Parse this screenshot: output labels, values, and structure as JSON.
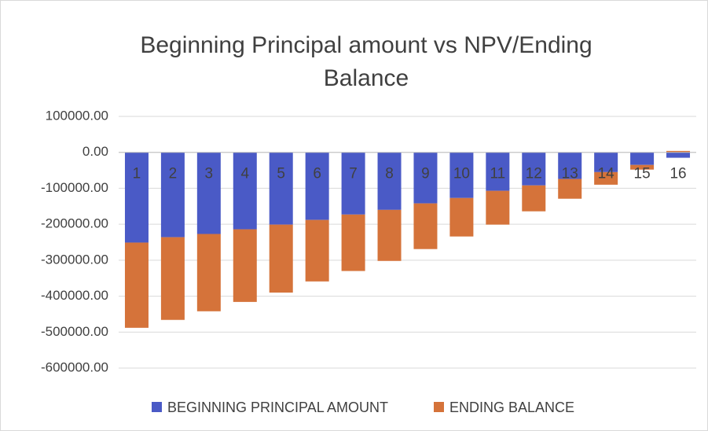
{
  "chart_data": {
    "type": "stacked_bar",
    "title": "Beginning Principal amount vs NPV/Ending Balance",
    "categories": [
      "1",
      "2",
      "3",
      "4",
      "5",
      "6",
      "7",
      "8",
      "9",
      "10",
      "11",
      "12",
      "13",
      "14",
      "15",
      "16"
    ],
    "series": [
      {
        "name": "BEGINNING PRINCIPAL AMOUNT",
        "color": "#4a5ac6",
        "values": [
          -251000,
          -236000,
          -227000,
          -214000,
          -201000,
          -188000,
          -173000,
          -160000,
          -142000,
          -127000,
          -107000,
          -92000,
          -74000,
          -55000,
          -35000,
          -15000
        ]
      },
      {
        "name": "ENDING BALANCE",
        "color": "#d5733a",
        "values": [
          -237000,
          -230000,
          -215000,
          -202000,
          -189000,
          -171000,
          -157000,
          -142000,
          -127000,
          -107000,
          -94000,
          -72000,
          -55000,
          -35000,
          -13000,
          4000
        ]
      }
    ],
    "ylim": [
      -600000,
      100000
    ],
    "yticks": [
      {
        "value": -600000,
        "label": "-600000.00"
      },
      {
        "value": -500000,
        "label": "-500000.00"
      },
      {
        "value": -400000,
        "label": "-400000.00"
      },
      {
        "value": -300000,
        "label": "-300000.00"
      },
      {
        "value": -200000,
        "label": "-200000.00"
      },
      {
        "value": -100000,
        "label": "-100000.00"
      },
      {
        "value": 0,
        "label": "0.00"
      },
      {
        "value": 100000,
        "label": "100000.00"
      }
    ],
    "grid": true,
    "legend": "bottom"
  }
}
